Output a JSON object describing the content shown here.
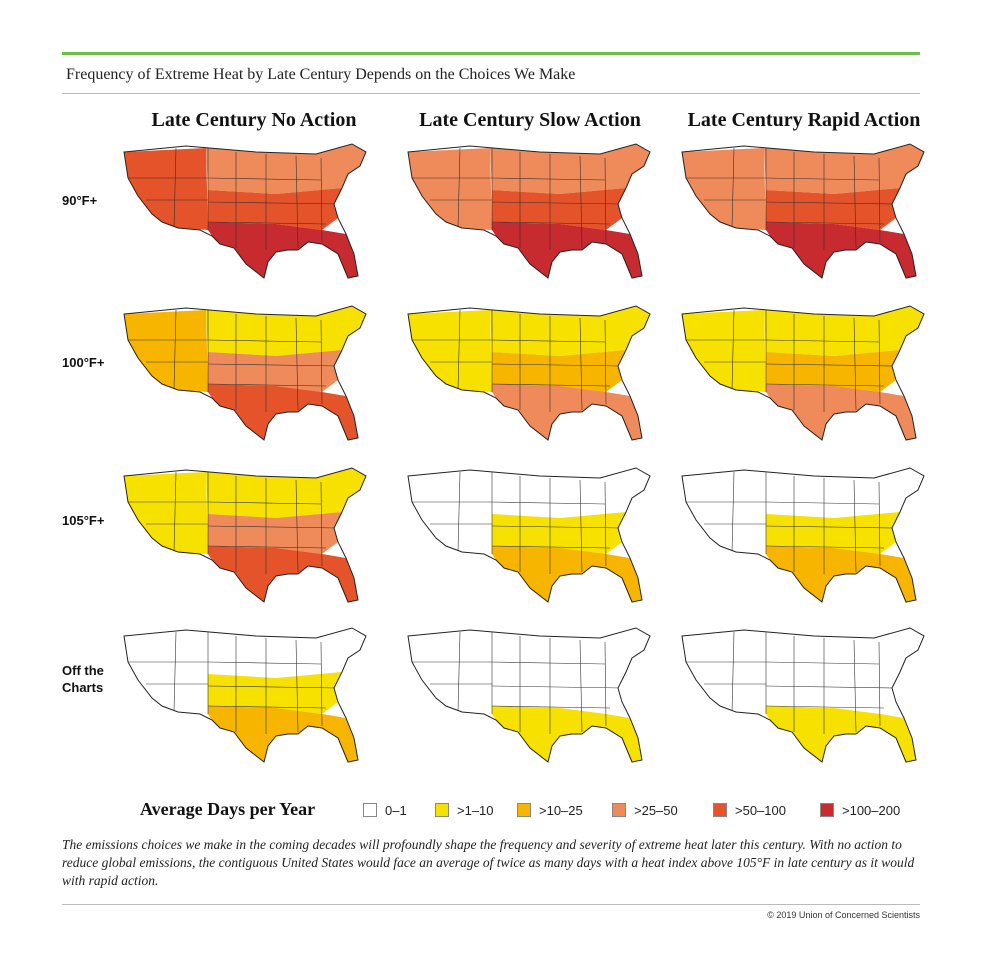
{
  "title": "Frequency of Extreme Heat by Late Century Depends on the Choices We Make",
  "columns": [
    "Late Century No Action",
    "Late Century Slow Action",
    "Late Century Rapid Action"
  ],
  "rows": [
    "90°F+",
    "100°F+",
    "105°F+",
    "Off the Charts"
  ],
  "legend": {
    "title": "Average Days per Year",
    "items": [
      {
        "label": "0–1",
        "color": "#ffffff"
      },
      {
        "label": ">1–10",
        "color": "#f7e100"
      },
      {
        "label": ">10–25",
        "color": "#f7b500"
      },
      {
        "label": ">25–50",
        "color": "#ef8a5a"
      },
      {
        "label": ">50–100",
        "color": "#e4532a"
      },
      {
        "label": ">100–200",
        "color": "#c72a2f"
      }
    ]
  },
  "caption": "The emissions choices we make in the coming decades will profoundly shape the frequency and severity of extreme heat later this century. With no action to reduce global emissions, the contiguous United States would face an average of twice as many days with a heat index above 105°F in late century as it would with rapid action.",
  "copyright": "© 2019 Union of Concerned Scientists",
  "map_levels": [
    [
      {
        "west": 4,
        "east": 4,
        "south": 5,
        "north": 3
      },
      {
        "west": 3,
        "east": 4,
        "south": 5,
        "north": 3
      },
      {
        "west": 3,
        "east": 4,
        "south": 5,
        "north": 3
      }
    ],
    [
      {
        "west": 2,
        "east": 3,
        "south": 4,
        "north": 1
      },
      {
        "west": 1,
        "east": 2,
        "south": 3,
        "north": 1
      },
      {
        "west": 1,
        "east": 2,
        "south": 3,
        "north": 1
      }
    ],
    [
      {
        "west": 1,
        "east": 3,
        "south": 4,
        "north": 1
      },
      {
        "west": 0,
        "east": 1,
        "south": 2,
        "north": 0
      },
      {
        "west": 0,
        "east": 1,
        "south": 2,
        "north": 0
      }
    ],
    [
      {
        "west": 0,
        "east": 1,
        "south": 2,
        "north": 0
      },
      {
        "west": 0,
        "east": 0,
        "south": 1,
        "north": 0
      },
      {
        "west": 0,
        "east": 0,
        "south": 1,
        "north": 0
      }
    ]
  ]
}
